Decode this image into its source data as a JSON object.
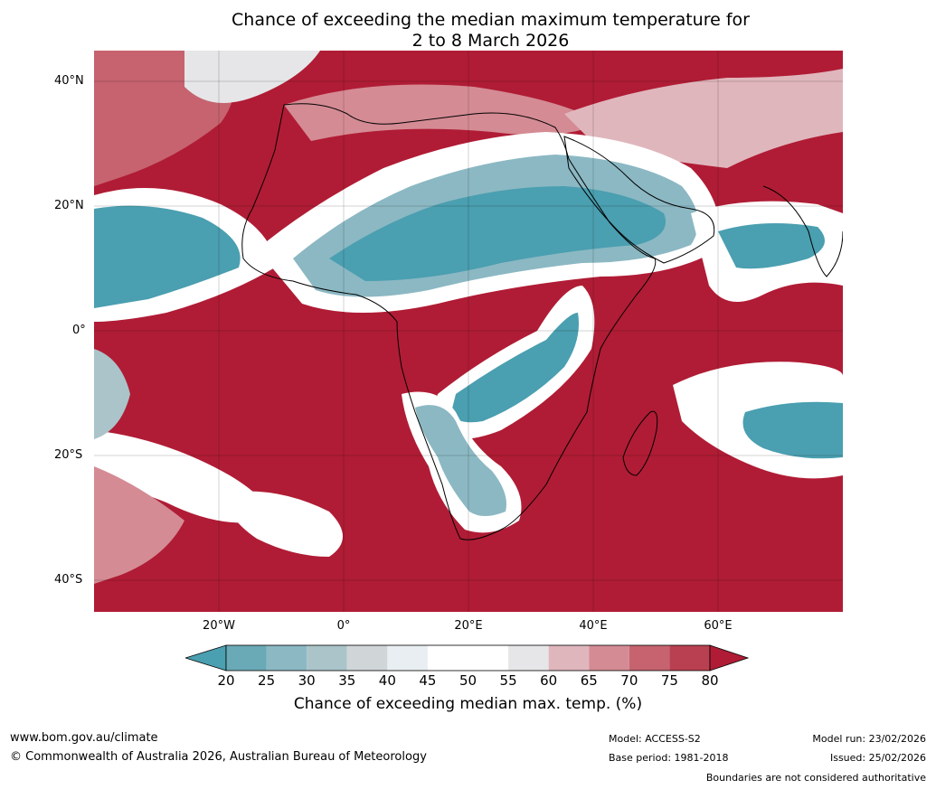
{
  "title_line1": "Chance of exceeding the median maximum temperature for",
  "title_line2": "2 to 8 March 2026",
  "latitude_labels": [
    "40°N",
    "20°N",
    "0°",
    "20°S",
    "40°S"
  ],
  "longitude_labels": [
    "20°W",
    "0°",
    "20°E",
    "40°E",
    "60°E"
  ],
  "colorbar": {
    "ticks": [
      "20",
      "25",
      "30",
      "35",
      "40",
      "45",
      "50",
      "55",
      "60",
      "65",
      "70",
      "75",
      "80"
    ],
    "label": "Chance of exceeding median max. temp. (%)",
    "colors": [
      "#4a9fb0",
      "#6aa9b6",
      "#8bb8c3",
      "#aac4c9",
      "#d0d5d7",
      "#e8eef1",
      "#ffffff",
      "#ffffff",
      "#e6e6e8",
      "#e0b6bd",
      "#d48b94",
      "#c6636f",
      "#b94050"
    ],
    "under_color": "#4a9fb0",
    "over_color": "#b01c35"
  },
  "footer": {
    "website": "www.bom.gov.au/climate",
    "copyright": "© Commonwealth of Australia 2026, Australian Bureau of Meteorology",
    "model": "Model: ACCESS-S2",
    "base_period": "Base period: 1981-2018",
    "model_run": "Model run: 23/02/2026",
    "issued": "Issued: 25/02/2026",
    "disclaimer": "Boundaries are not considered authoritative"
  },
  "map_colors": {
    "high": "#b01c35",
    "mid_high": "#c6636f",
    "low": "#4a9fb0",
    "mid_low": "#8bb8c3",
    "neutral": "#ffffff"
  }
}
